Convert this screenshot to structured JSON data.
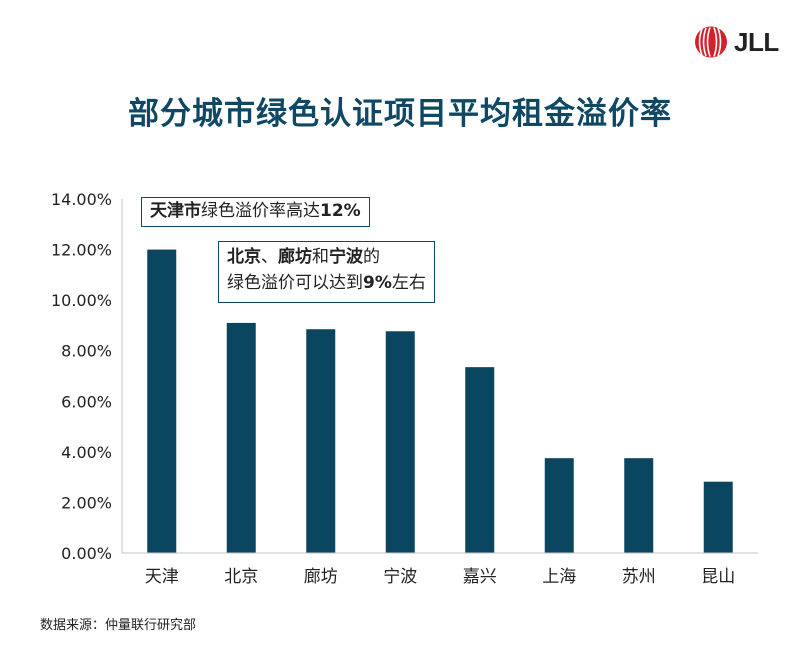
{
  "logo": {
    "text": "JLL"
  },
  "title": "部分城市绿色认证项目平均租金溢价率",
  "annotations": {
    "first": {
      "strong": "天津市",
      "text": "绿色溢价率高达",
      "value": "12%"
    },
    "second": {
      "line1": {
        "city1": "北京",
        "sep1": "、",
        "city2": "廊坊",
        "sep2": "和",
        "city3": "宁波",
        "tail": "的"
      },
      "line2": {
        "text": "绿色溢价可以达到",
        "value": "9%",
        "tail": "左右"
      }
    }
  },
  "source": "数据来源：仲量联行研究部",
  "colors": {
    "bar": "#0b4660",
    "title": "#0f4864",
    "logo_red": "#d4202a"
  },
  "chart_data": {
    "type": "bar",
    "title": "部分城市绿色认证项目平均租金溢价率",
    "categories": [
      "天津",
      "北京",
      "廊坊",
      "宁波",
      "嘉兴",
      "上海",
      "苏州",
      "昆山"
    ],
    "values": [
      0.12,
      0.091,
      0.0885,
      0.0877,
      0.0735,
      0.0375,
      0.0375,
      0.0282
    ],
    "ylim": [
      0,
      0.14
    ],
    "yticks": [
      0,
      0.02,
      0.04,
      0.06,
      0.08,
      0.1,
      0.12,
      0.14
    ],
    "ytick_labels": [
      "0.00%",
      "2.00%",
      "4.00%",
      "6.00%",
      "8.00%",
      "10.00%",
      "12.00%",
      "14.00%"
    ],
    "grid": false,
    "legend": "none"
  }
}
